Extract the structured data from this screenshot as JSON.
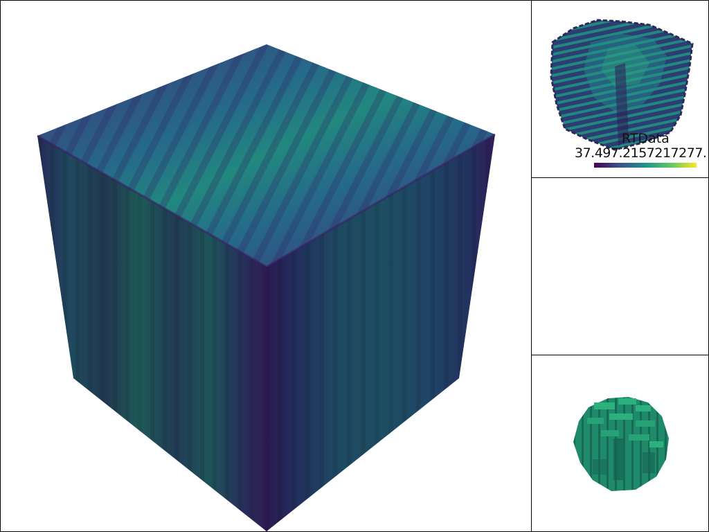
{
  "scalar_bar": {
    "title": "RTData",
    "range_labels": "37.497.2157217277.",
    "colormap": "viridis"
  },
  "colors": {
    "viridis_dark": "#440154",
    "viridis_blue": "#3b528b",
    "viridis_teal": "#21918c",
    "viridis_green": "#5ec962",
    "viridis_yellow": "#fde725",
    "border": "#000000",
    "background": "#ffffff"
  }
}
